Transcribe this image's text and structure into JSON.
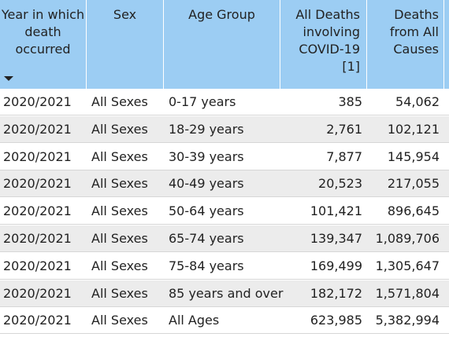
{
  "table": {
    "columns": {
      "year": "Year in which\ndeath\noccurred",
      "sex": "Sex",
      "age": "Age Group",
      "covid": "All Deaths\ninvolving\nCOVID-19 [1]",
      "all": "Deaths\nfrom All\nCauses"
    },
    "sort_indicator": "sort-descending-icon",
    "header_color": "#9ccdf3",
    "alt_row_color": "#ececec",
    "rows": [
      {
        "year": "2020/2021",
        "sex": "All Sexes",
        "age": "0-17 years",
        "covid": "385",
        "all": "54,062"
      },
      {
        "year": "2020/2021",
        "sex": "All Sexes",
        "age": "18-29 years",
        "covid": "2,761",
        "all": "102,121"
      },
      {
        "year": "2020/2021",
        "sex": "All Sexes",
        "age": "30-39 years",
        "covid": "7,877",
        "all": "145,954"
      },
      {
        "year": "2020/2021",
        "sex": "All Sexes",
        "age": "40-49 years",
        "covid": "20,523",
        "all": "217,055"
      },
      {
        "year": "2020/2021",
        "sex": "All Sexes",
        "age": "50-64 years",
        "covid": "101,421",
        "all": "896,645"
      },
      {
        "year": "2020/2021",
        "sex": "All Sexes",
        "age": "65-74 years",
        "covid": "139,347",
        "all": "1,089,706"
      },
      {
        "year": "2020/2021",
        "sex": "All Sexes",
        "age": "75-84 years",
        "covid": "169,499",
        "all": "1,305,647"
      },
      {
        "year": "2020/2021",
        "sex": "All Sexes",
        "age": "85 years and over",
        "covid": "182,172",
        "all": "1,571,804"
      },
      {
        "year": "2020/2021",
        "sex": "All Sexes",
        "age": "All Ages",
        "covid": "623,985",
        "all": "5,382,994"
      }
    ]
  }
}
